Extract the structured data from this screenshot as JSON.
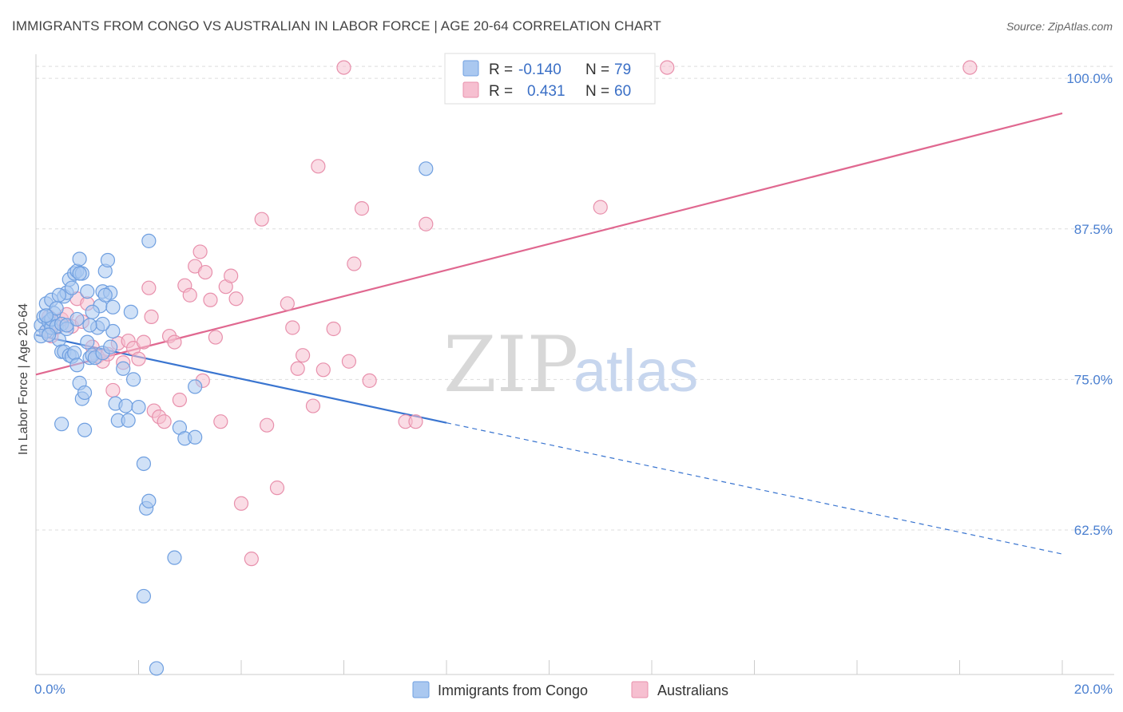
{
  "title": "IMMIGRANTS FROM CONGO VS AUSTRALIAN IN LABOR FORCE | AGE 20-64 CORRELATION CHART",
  "source": "Source: ZipAtlas.com",
  "watermark": {
    "zip": "ZIP",
    "atlas": "atlas"
  },
  "colors": {
    "blue_fill": "#aac8f0",
    "blue_stroke": "#6f9fe0",
    "blue_line": "#3a75d0",
    "pink_fill": "#f6bfd0",
    "pink_stroke": "#e890ac",
    "pink_line": "#e06890",
    "grid": "#dddddd",
    "tick_text": "#4a7fd0"
  },
  "legend": {
    "rows": [
      {
        "r_label": "R =",
        "r_value": "-0.140",
        "n_label": "N =",
        "n_value": "79"
      },
      {
        "r_label": "R =",
        "r_value": "0.431",
        "n_label": "N =",
        "n_value": "60"
      }
    ]
  },
  "chart_data": {
    "type": "scatter",
    "title": "IMMIGRANTS FROM CONGO VS AUSTRALIAN IN LABOR FORCE | AGE 20-64 CORRELATION CHART",
    "xlabel": "",
    "ylabel": "In Labor Force | Age 20-64",
    "xlim": [
      0,
      20
    ],
    "ylim": [
      50.5,
      102
    ],
    "x_tick_labels": [
      "0.0%",
      "20.0%"
    ],
    "y_ticks": [
      62.5,
      75.0,
      87.5,
      100.0
    ],
    "y_tick_labels": [
      "62.5%",
      "75.0%",
      "87.5%",
      "100.0%"
    ],
    "grid": true,
    "legend_position": "top-center",
    "series": [
      {
        "name": "Immigrants from Congo",
        "color": "#aac8f0",
        "r": -0.14,
        "n": 79,
        "trend": {
          "x0": 0.0,
          "y0": 78.7,
          "x1": 8.0,
          "y1": 71.4,
          "dashed_to_x": 20.0,
          "dashed_to_y": 60.5
        },
        "points": [
          [
            0.1,
            79.5
          ],
          [
            0.15,
            80.2
          ],
          [
            0.2,
            79.0
          ],
          [
            0.25,
            79.8
          ],
          [
            0.3,
            79.3
          ],
          [
            0.35,
            80.5
          ],
          [
            0.1,
            78.6
          ],
          [
            0.2,
            81.3
          ],
          [
            0.3,
            80.0
          ],
          [
            0.4,
            79.4
          ],
          [
            0.45,
            78.3
          ],
          [
            0.5,
            79.6
          ],
          [
            0.55,
            81.9
          ],
          [
            0.6,
            82.2
          ],
          [
            0.65,
            83.3
          ],
          [
            0.7,
            82.6
          ],
          [
            0.75,
            83.8
          ],
          [
            0.8,
            84.0
          ],
          [
            0.85,
            85.0
          ],
          [
            0.9,
            83.8
          ],
          [
            0.3,
            81.6
          ],
          [
            0.4,
            80.9
          ],
          [
            0.5,
            77.3
          ],
          [
            0.55,
            77.3
          ],
          [
            0.6,
            79.2
          ],
          [
            0.65,
            77.0
          ],
          [
            0.7,
            76.9
          ],
          [
            0.75,
            77.2
          ],
          [
            0.8,
            76.2
          ],
          [
            0.85,
            74.7
          ],
          [
            0.9,
            73.4
          ],
          [
            0.95,
            73.9
          ],
          [
            1.0,
            78.1
          ],
          [
            1.05,
            76.8
          ],
          [
            1.1,
            77.0
          ],
          [
            1.15,
            76.8
          ],
          [
            1.2,
            79.3
          ],
          [
            1.25,
            81.1
          ],
          [
            1.3,
            82.3
          ],
          [
            1.35,
            84.0
          ],
          [
            1.4,
            84.9
          ],
          [
            1.45,
            82.2
          ],
          [
            1.5,
            79.0
          ],
          [
            1.55,
            73.0
          ],
          [
            1.6,
            71.6
          ],
          [
            1.7,
            75.9
          ],
          [
            1.75,
            72.8
          ],
          [
            1.8,
            71.6
          ],
          [
            1.85,
            80.6
          ],
          [
            1.9,
            75.0
          ],
          [
            0.5,
            71.3
          ],
          [
            0.95,
            70.8
          ],
          [
            1.35,
            82.0
          ],
          [
            1.3,
            79.6
          ],
          [
            2.0,
            72.7
          ],
          [
            2.2,
            86.5
          ],
          [
            2.1,
            68.0
          ],
          [
            2.15,
            64.3
          ],
          [
            2.2,
            64.9
          ],
          [
            2.1,
            57.0
          ],
          [
            2.35,
            51.0
          ],
          [
            2.7,
            60.2
          ],
          [
            2.8,
            71.0
          ],
          [
            2.9,
            70.1
          ],
          [
            3.1,
            74.4
          ],
          [
            3.1,
            70.2
          ],
          [
            7.6,
            92.5
          ],
          [
            1.3,
            77.2
          ],
          [
            1.5,
            81.0
          ],
          [
            0.2,
            80.3
          ],
          [
            0.6,
            79.5
          ],
          [
            0.8,
            80.0
          ],
          [
            0.85,
            83.8
          ],
          [
            1.0,
            82.3
          ],
          [
            1.1,
            80.6
          ],
          [
            0.45,
            82.0
          ],
          [
            0.25,
            78.7
          ],
          [
            1.05,
            79.5
          ],
          [
            1.45,
            77.7
          ]
        ]
      },
      {
        "name": "Australians",
        "color": "#f6bfd0",
        "r": 0.431,
        "n": 60,
        "trend": {
          "x0": 0.0,
          "y0": 75.4,
          "x1": 20.0,
          "y1": 97.1
        },
        "points": [
          [
            0.2,
            79.0
          ],
          [
            0.25,
            80.2
          ],
          [
            0.3,
            78.6
          ],
          [
            0.35,
            79.7
          ],
          [
            0.4,
            79.3
          ],
          [
            0.5,
            80.0
          ],
          [
            0.6,
            80.4
          ],
          [
            0.7,
            79.4
          ],
          [
            0.8,
            81.7
          ],
          [
            0.9,
            79.8
          ],
          [
            1.0,
            81.3
          ],
          [
            1.1,
            77.7
          ],
          [
            1.2,
            76.9
          ],
          [
            1.3,
            76.5
          ],
          [
            1.4,
            77.1
          ],
          [
            1.5,
            74.1
          ],
          [
            1.6,
            78.0
          ],
          [
            1.7,
            76.4
          ],
          [
            1.8,
            78.2
          ],
          [
            1.9,
            77.6
          ],
          [
            2.0,
            76.7
          ],
          [
            2.1,
            78.1
          ],
          [
            2.2,
            82.6
          ],
          [
            2.25,
            80.2
          ],
          [
            2.3,
            72.4
          ],
          [
            2.4,
            71.9
          ],
          [
            2.5,
            71.5
          ],
          [
            2.6,
            78.6
          ],
          [
            2.7,
            78.1
          ],
          [
            2.8,
            73.3
          ],
          [
            2.9,
            82.8
          ],
          [
            3.0,
            82.0
          ],
          [
            3.1,
            84.4
          ],
          [
            3.2,
            85.6
          ],
          [
            3.25,
            74.9
          ],
          [
            3.3,
            83.9
          ],
          [
            3.4,
            81.6
          ],
          [
            3.5,
            78.5
          ],
          [
            3.6,
            71.5
          ],
          [
            3.7,
            82.7
          ],
          [
            3.8,
            83.6
          ],
          [
            3.9,
            81.7
          ],
          [
            4.0,
            64.7
          ],
          [
            4.2,
            60.1
          ],
          [
            4.4,
            88.3
          ],
          [
            4.5,
            71.2
          ],
          [
            4.7,
            66.0
          ],
          [
            4.9,
            81.3
          ],
          [
            5.0,
            79.3
          ],
          [
            5.1,
            75.9
          ],
          [
            5.2,
            77.0
          ],
          [
            5.4,
            72.8
          ],
          [
            5.5,
            92.7
          ],
          [
            5.6,
            75.8
          ],
          [
            5.8,
            79.2
          ],
          [
            6.0,
            100.9
          ],
          [
            6.1,
            76.5
          ],
          [
            6.2,
            84.6
          ],
          [
            6.35,
            89.2
          ],
          [
            6.5,
            74.9
          ]
        ],
        "extra_points": [
          [
            7.2,
            71.5
          ],
          [
            7.4,
            71.5
          ],
          [
            7.6,
            87.9
          ],
          [
            11.0,
            89.3
          ],
          [
            12.3,
            100.9
          ],
          [
            18.2,
            100.9
          ]
        ]
      }
    ]
  },
  "bottom_legend": [
    {
      "label": "Immigrants from Congo"
    },
    {
      "label": "Australians"
    }
  ]
}
